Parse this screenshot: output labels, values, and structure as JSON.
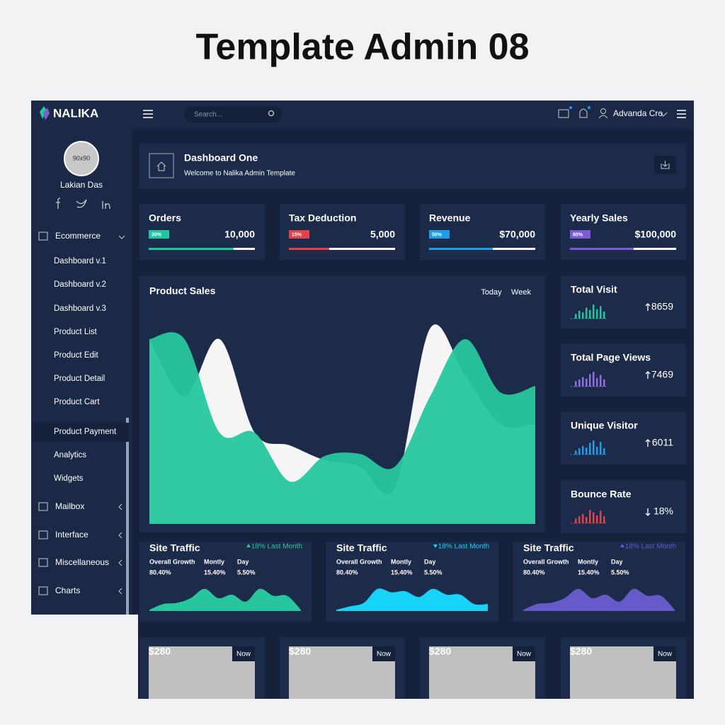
{
  "page_title": "Template Admin 08",
  "header": {
    "brand": "NALIKA",
    "search_placeholder": "Search...",
    "user": "Advanda Cro"
  },
  "sidebar": {
    "avatar": "90x90",
    "user_name": "Lakian Das",
    "menu": [
      {
        "label": "Ecommerce",
        "items": [
          "Dashboard v.1",
          "Dashboard v.2",
          "Dashboard v.3",
          "Product List",
          "Product Edit",
          "Product Detail",
          "Product Cart",
          "Product Payment",
          "Analytics",
          "Widgets"
        ]
      },
      {
        "label": "Mailbox"
      },
      {
        "label": "Interface"
      },
      {
        "label": "Miscellaneous"
      },
      {
        "label": "Charts"
      }
    ]
  },
  "page_header": {
    "title": "Dashboard One",
    "subtitle": "Welcome to Nalika Admin Template"
  },
  "stats": [
    {
      "title": "Orders",
      "badge": "30%",
      "value": "10,000",
      "progress": 80,
      "color": "#1fc7a0"
    },
    {
      "title": "Tax Deduction",
      "badge": "15%",
      "value": "5,000",
      "progress": 38,
      "color": "#e0434b"
    },
    {
      "title": "Revenue",
      "badge": "50%",
      "value": "$70,000",
      "progress": 60,
      "color": "#1f9ee8"
    },
    {
      "title": "Yearly Sales",
      "badge": "80%",
      "value": "$100,000",
      "progress": 60,
      "color": "#7c5cd6"
    }
  ],
  "product_sales": {
    "title": "Product Sales",
    "tabs": [
      "Today",
      "Week"
    ],
    "series": [
      {
        "color": "#f5f5f5",
        "values": [
          87,
          60,
          87,
          43,
          37,
          30,
          27,
          17,
          92,
          70,
          47,
          47
        ]
      },
      {
        "color": "#27c79d",
        "values": [
          87,
          87,
          43,
          43,
          20,
          32,
          33,
          27,
          60,
          87,
          62,
          65
        ]
      }
    ]
  },
  "mini_stats": [
    {
      "title": "Total Visit",
      "value": "8659",
      "trend": "up",
      "color": "#1fc7a0",
      "bars": [
        30,
        50,
        40,
        70,
        55,
        90,
        60,
        80,
        45
      ]
    },
    {
      "title": "Total Page Views",
      "value": "7469",
      "trend": "up",
      "color": "#8e6fe0",
      "bars": [
        35,
        45,
        60,
        50,
        80,
        95,
        55,
        75,
        45
      ]
    },
    {
      "title": "Unique Visitor",
      "value": "6011",
      "trend": "up",
      "color": "#1f9ee8",
      "bars": [
        25,
        40,
        55,
        45,
        75,
        90,
        50,
        80,
        40
      ]
    },
    {
      "title": "Bounce Rate",
      "value": "18%",
      "trend": "down",
      "color": "#e0434b",
      "bars": [
        30,
        45,
        60,
        40,
        85,
        70,
        50,
        80,
        45
      ]
    }
  ],
  "site_traffic": [
    {
      "title": "Site Traffic",
      "change": "18% Last Month",
      "trend": "up",
      "color": "#27c79d",
      "columns": [
        {
          "label": "Overall Growth",
          "value": "80.40%"
        },
        {
          "label": "Montly",
          "value": "15.40%"
        },
        {
          "label": "Day",
          "value": "5.50%"
        }
      ],
      "values": [
        5,
        30,
        35,
        55,
        95,
        55,
        70,
        40,
        95,
        65,
        65,
        5
      ]
    },
    {
      "title": "Site Traffic",
      "change": "18% Last Month",
      "trend": "down",
      "color": "#16d3f7",
      "columns": [
        {
          "label": "Overall Growth",
          "value": "80.40%"
        },
        {
          "label": "Montly",
          "value": "15.40%"
        },
        {
          "label": "Day",
          "value": "5.50%"
        }
      ],
      "values": [
        5,
        20,
        35,
        95,
        80,
        85,
        60,
        95,
        70,
        70,
        30,
        30
      ]
    },
    {
      "title": "Site Traffic",
      "change": "18% Last Month",
      "trend": "up",
      "color": "#6659c9",
      "columns": [
        {
          "label": "Overall Growth",
          "value": "80.40%"
        },
        {
          "label": "Montly",
          "value": "15.40%"
        },
        {
          "label": "Day",
          "value": "5.50%"
        }
      ],
      "values": [
        5,
        30,
        35,
        55,
        95,
        55,
        70,
        40,
        95,
        65,
        65,
        5
      ]
    }
  ],
  "products": [
    {
      "price": "$280",
      "badge": "Now"
    },
    {
      "price": "$280",
      "badge": "Now"
    },
    {
      "price": "$280",
      "badge": "Now"
    },
    {
      "price": "$280",
      "badge": "Now"
    }
  ]
}
